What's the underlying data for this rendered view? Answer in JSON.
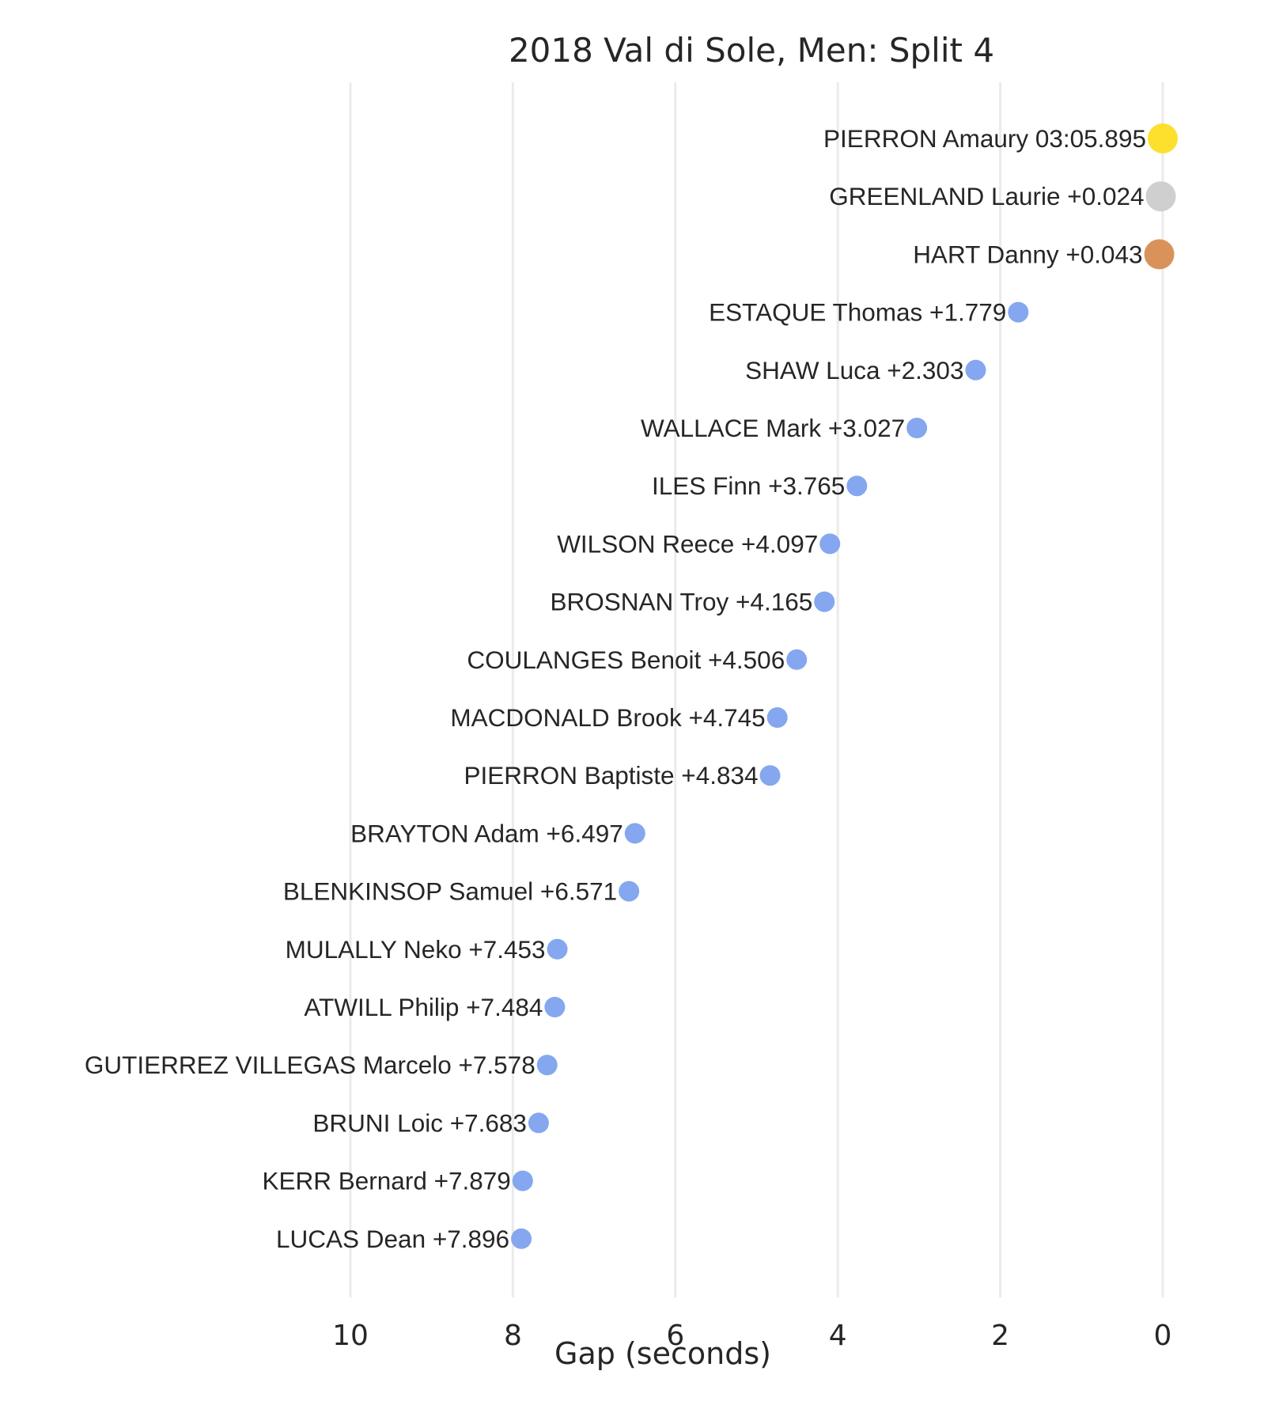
{
  "chart_data": {
    "type": "scatter",
    "title": "2018 Val di Sole, Men: Split 4",
    "xlabel": "Gap (seconds)",
    "ylabel": "",
    "xlim": [
      10,
      0
    ],
    "x_ticks": [
      10,
      8,
      6,
      4,
      2,
      0
    ],
    "x_tick_labels": [
      "10",
      "8",
      "6",
      "4",
      "2",
      "0"
    ],
    "grid": "vertical",
    "colors": {
      "gold": "#fde02e",
      "silver": "#cfcfcf",
      "bronze": "#d9935a",
      "other": "#84a7ef"
    },
    "points": [
      {
        "label": "PIERRON Amaury 03:05.895",
        "x": 0.0,
        "medal": "gold"
      },
      {
        "label": "GREENLAND Laurie +0.024",
        "x": 0.024,
        "medal": "silver"
      },
      {
        "label": "HART Danny +0.043",
        "x": 0.043,
        "medal": "bronze"
      },
      {
        "label": "ESTAQUE Thomas +1.779",
        "x": 1.779,
        "medal": "other"
      },
      {
        "label": "SHAW Luca +2.303",
        "x": 2.303,
        "medal": "other"
      },
      {
        "label": "WALLACE Mark +3.027",
        "x": 3.027,
        "medal": "other"
      },
      {
        "label": "ILES Finn +3.765",
        "x": 3.765,
        "medal": "other"
      },
      {
        "label": "WILSON Reece +4.097",
        "x": 4.097,
        "medal": "other"
      },
      {
        "label": "BROSNAN Troy +4.165",
        "x": 4.165,
        "medal": "other"
      },
      {
        "label": "COULANGES Benoit +4.506",
        "x": 4.506,
        "medal": "other"
      },
      {
        "label": "MACDONALD Brook +4.745",
        "x": 4.745,
        "medal": "other"
      },
      {
        "label": "PIERRON Baptiste +4.834",
        "x": 4.834,
        "medal": "other"
      },
      {
        "label": "BRAYTON Adam +6.497",
        "x": 6.497,
        "medal": "other"
      },
      {
        "label": "BLENKINSOP Samuel +6.571",
        "x": 6.571,
        "medal": "other"
      },
      {
        "label": "MULALLY Neko +7.453",
        "x": 7.453,
        "medal": "other"
      },
      {
        "label": "ATWILL Philip +7.484",
        "x": 7.484,
        "medal": "other"
      },
      {
        "label": "GUTIERREZ VILLEGAS Marcelo +7.578",
        "x": 7.578,
        "medal": "other"
      },
      {
        "label": "BRUNI Loic +7.683",
        "x": 7.683,
        "medal": "other"
      },
      {
        "label": "KERR Bernard +7.879",
        "x": 7.879,
        "medal": "other"
      },
      {
        "label": "LUCAS Dean +7.896",
        "x": 7.896,
        "medal": "other"
      }
    ]
  }
}
